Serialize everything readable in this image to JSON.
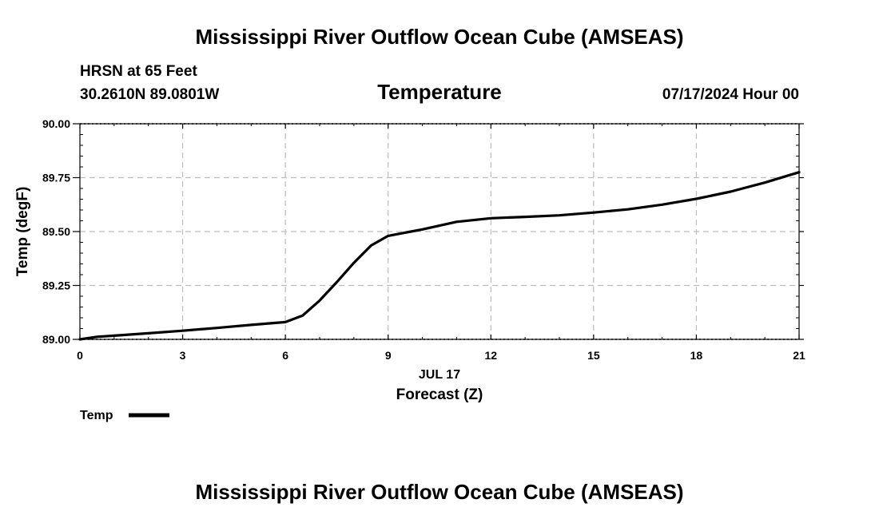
{
  "header": {
    "title": "Mississippi River Outflow Ocean Cube (AMSEAS)",
    "station": "HRSN at 65 Feet",
    "coords": "30.2610N  89.0801W",
    "date": "07/17/2024 Hour 00"
  },
  "footer": {
    "title": "Mississippi River Outflow Ocean Cube (AMSEAS)"
  },
  "chart_data": {
    "type": "line",
    "title": "Temperature",
    "xlabel": "Forecast (Z)",
    "ylabel": "Temp (degF)",
    "date_label": "JUL 17",
    "xlim": [
      0,
      21
    ],
    "ylim": [
      89.0,
      90.0
    ],
    "x_ticks": [
      0,
      3,
      6,
      9,
      12,
      15,
      18,
      21
    ],
    "x_tick_labels": [
      "0",
      "3",
      "6",
      "9",
      "12",
      "15",
      "18",
      "21"
    ],
    "y_ticks": [
      89.0,
      89.25,
      89.5,
      89.75,
      90.0
    ],
    "y_tick_labels": [
      "89.00",
      "89.25",
      "89.50",
      "89.75",
      "90.00"
    ],
    "grid": true,
    "legend": "bottom-left",
    "series": [
      {
        "name": "Temp",
        "color": "#000000",
        "x": [
          0,
          0.5,
          1,
          2,
          3,
          4,
          5,
          6,
          6.5,
          7,
          7.5,
          8,
          8.5,
          9,
          10,
          11,
          12,
          13,
          14,
          15,
          16,
          17,
          18,
          19,
          20,
          21
        ],
        "values": [
          89.0,
          89.012,
          89.017,
          89.028,
          89.04,
          89.053,
          89.067,
          89.08,
          89.11,
          89.18,
          89.265,
          89.355,
          89.435,
          89.48,
          89.51,
          89.545,
          89.562,
          89.568,
          89.575,
          89.588,
          89.603,
          89.625,
          89.652,
          89.685,
          89.727,
          89.775
        ]
      }
    ]
  }
}
